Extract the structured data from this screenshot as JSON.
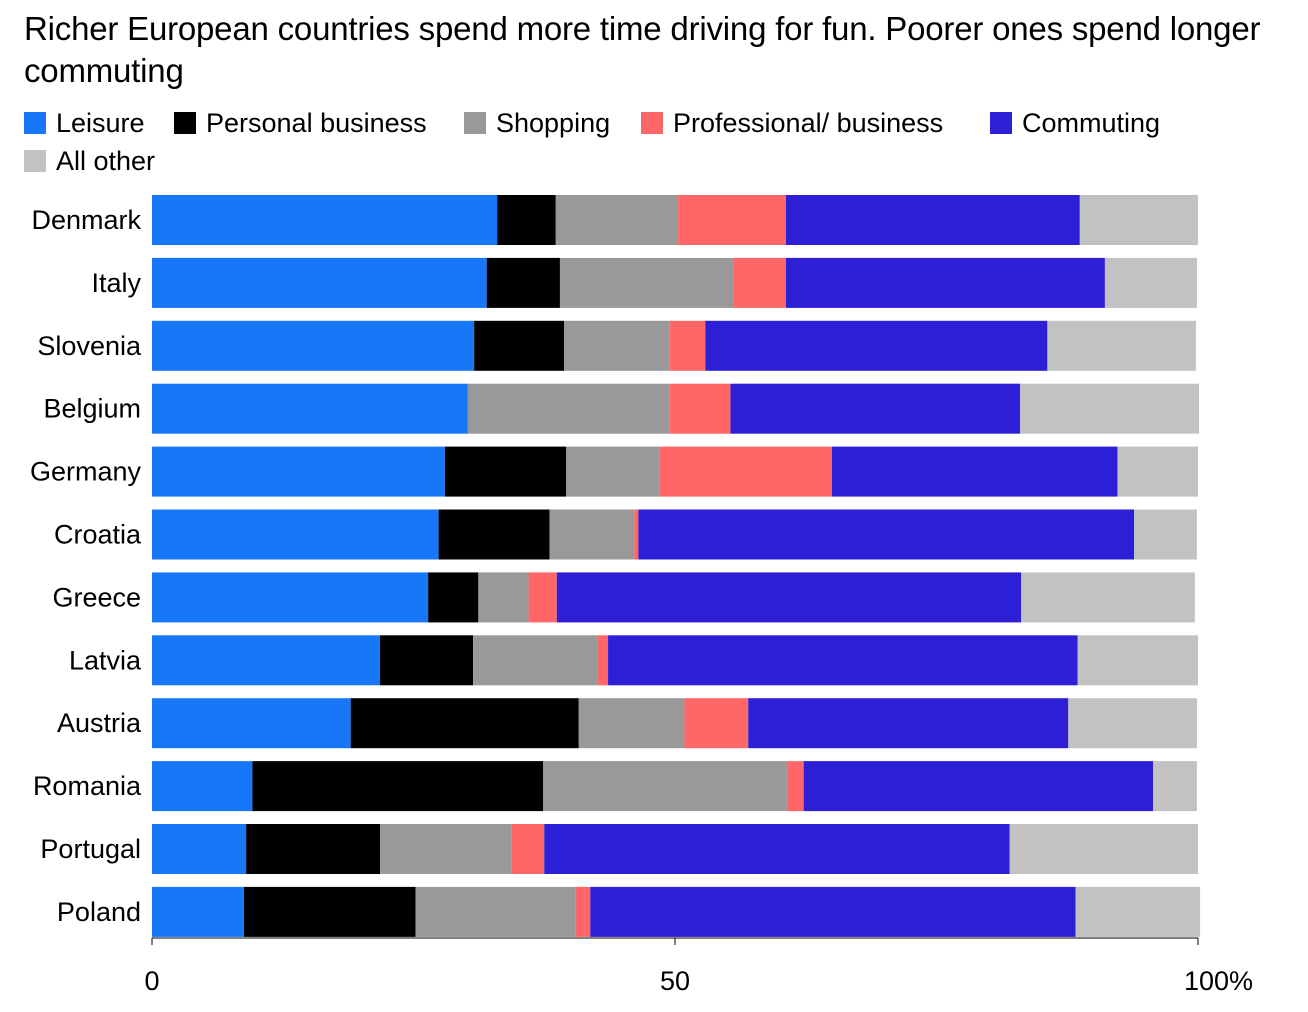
{
  "chart_data": {
    "type": "bar",
    "orientation": "horizontal",
    "stacked": true,
    "title": "Richer European countries spend more time driving for fun. Poorer ones spend longer commuting",
    "categories": [
      "Denmark",
      "Italy",
      "Slovenia",
      "Belgium",
      "Germany",
      "Croatia",
      "Greece",
      "Latvia",
      "Austria",
      "Romania",
      "Portugal",
      "Poland"
    ],
    "series": [
      {
        "name": "Leisure",
        "color": "#1877F9",
        "values": [
          33,
          32,
          30.8,
          30.2,
          28,
          27.4,
          26.4,
          21.8,
          19,
          9.6,
          9,
          8.8
        ]
      },
      {
        "name": "Personal business",
        "color": "#000000",
        "values": [
          5.6,
          7,
          8.6,
          0,
          11.6,
          10.6,
          4.8,
          8.9,
          21.8,
          27.8,
          12.8,
          16.4
        ]
      },
      {
        "name": "Shopping",
        "color": "#999999",
        "values": [
          11.7,
          16.6,
          10.1,
          19.3,
          8.9,
          8.1,
          4.8,
          11.9,
          10.1,
          23.3,
          12.6,
          15.3
        ]
      },
      {
        "name": "Professional/ business",
        "color": "#FF6668",
        "values": [
          10.3,
          5,
          3.4,
          5.8,
          16.5,
          0.4,
          2.7,
          1,
          6.1,
          1.6,
          3.1,
          1.4
        ]
      },
      {
        "name": "Commuting",
        "color": "#2C1FD6",
        "values": [
          28.1,
          30.5,
          32.7,
          27.7,
          27.3,
          47.4,
          44.4,
          44.9,
          30.6,
          33.4,
          44.5,
          46.4
        ]
      },
      {
        "name": "All other",
        "color": "#C2C2C2",
        "values": [
          11.3,
          8.8,
          14.2,
          17.1,
          7.7,
          6,
          16.6,
          11.5,
          12.3,
          4.2,
          18,
          11.9
        ]
      }
    ],
    "xlim": [
      0,
      100
    ],
    "xticks": [
      0,
      50,
      100
    ],
    "xtick_labels": [
      "0",
      "50",
      "100%"
    ],
    "xlabel": "",
    "ylabel": "",
    "legend_position": "top-left"
  }
}
